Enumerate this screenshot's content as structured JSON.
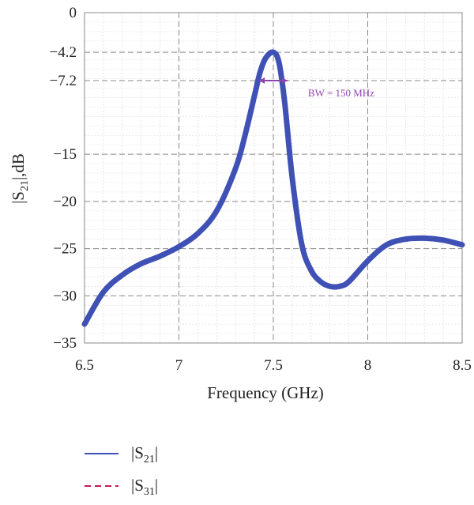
{
  "chart_data": {
    "type": "line",
    "xlabel": "Frequency (GHz)",
    "ylabel_main": "|S",
    "ylabel_sub": "21",
    "ylabel_tail": "|,dB",
    "xlim": [
      6.5,
      8.5
    ],
    "ylim": [
      -35,
      0
    ],
    "x_ticks": [
      {
        "value": 6.5,
        "label": "6.5"
      },
      {
        "value": 7,
        "label": "7"
      },
      {
        "value": 7.5,
        "label": "7.5"
      },
      {
        "value": 8,
        "label": "8"
      },
      {
        "value": 8.5,
        "label": "8.5"
      }
    ],
    "y_ticks": [
      {
        "value": 0,
        "label": "0"
      },
      {
        "value": -4.2,
        "label": "−4.2"
      },
      {
        "value": -7.2,
        "label": "−7.2"
      },
      {
        "value": -15,
        "label": "−15"
      },
      {
        "value": -20,
        "label": "−20"
      },
      {
        "value": -25,
        "label": "−25"
      },
      {
        "value": -30,
        "label": "−30"
      },
      {
        "value": -35,
        "label": "−35"
      }
    ],
    "grid": true,
    "series": [
      {
        "name": "|S21|",
        "legend_main": "|S",
        "legend_sub": "21",
        "legend_tail": "|",
        "color": "#3f51b5",
        "style": "solid",
        "x": [
          6.5,
          6.6,
          6.7,
          6.8,
          6.9,
          7.0,
          7.1,
          7.2,
          7.3,
          7.35,
          7.4,
          7.43,
          7.46,
          7.5,
          7.53,
          7.56,
          7.6,
          7.65,
          7.7,
          7.75,
          7.8,
          7.85,
          7.9,
          8.0,
          8.1,
          8.2,
          8.3,
          8.4,
          8.5
        ],
        "y": [
          -33.0,
          -29.6,
          -27.8,
          -26.6,
          -25.8,
          -24.8,
          -23.4,
          -21.0,
          -16.5,
          -13.0,
          -8.8,
          -6.3,
          -4.8,
          -4.2,
          -5.3,
          -9.5,
          -17.5,
          -24.5,
          -27.3,
          -28.5,
          -29.0,
          -29.0,
          -28.5,
          -26.3,
          -24.6,
          -24.0,
          -23.9,
          -24.1,
          -24.6
        ]
      },
      {
        "name": "|S31|",
        "legend_main": "|S",
        "legend_sub": "31",
        "legend_tail": "|",
        "color": "#c2185b",
        "style": "dashed",
        "x": [],
        "y": []
      }
    ],
    "annotation": {
      "text": "BW = 150 MHz",
      "x_start": 7.425,
      "x_end": 7.575,
      "y": -7.2,
      "color": "#8e44ad"
    }
  }
}
